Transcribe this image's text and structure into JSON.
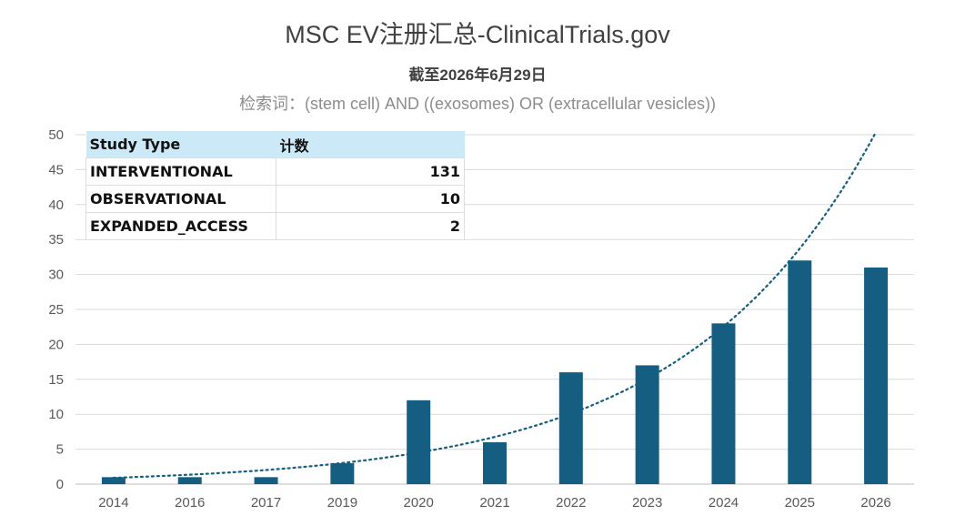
{
  "header": {
    "title": "MSC EV注册汇总-ClinicalTrials.gov",
    "subtitle": "截至2026年6月29日",
    "query": "检索词：(stem cell) AND ((exosomes) OR (extracellular vesicles))"
  },
  "study_table": {
    "headers": [
      "Study Type",
      "计数"
    ],
    "rows": [
      {
        "type": "INTERVENTIONAL",
        "count": "131"
      },
      {
        "type": "OBSERVATIONAL",
        "count": "10"
      },
      {
        "type": "EXPANDED_ACCESS",
        "count": "2"
      }
    ]
  },
  "chart_data": {
    "type": "bar",
    "title": "MSC EV注册汇总-ClinicalTrials.gov",
    "categories": [
      "2014",
      "2016",
      "2017",
      "2019",
      "2020",
      "2021",
      "2022",
      "2023",
      "2024",
      "2025",
      "2026"
    ],
    "values": [
      1,
      1,
      1,
      3,
      12,
      6,
      16,
      17,
      23,
      32,
      31
    ],
    "ylim": [
      0,
      50
    ],
    "yticks": [
      0,
      5,
      10,
      15,
      20,
      25,
      30,
      35,
      40,
      45,
      50
    ],
    "grid": true,
    "trendline": "exponential",
    "colors": {
      "bar": "#155e82",
      "trend": "#155e82",
      "table_header": "#cce9f7"
    }
  }
}
